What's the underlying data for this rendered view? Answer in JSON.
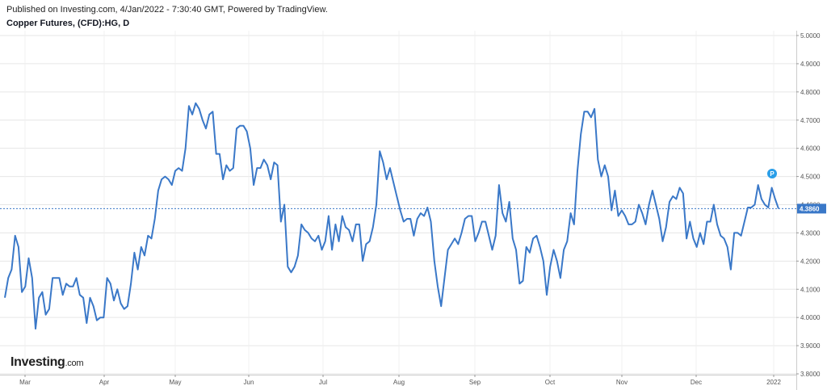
{
  "header": {
    "published": "Published on Investing.com, 4/Jan/2022 - 7:30:40 GMT, Powered by TradingView.",
    "title": "Copper Futures, (CFD):HG, D"
  },
  "logo": {
    "main": "Investing",
    "suffix": ".com"
  },
  "marker": {
    "label": "P",
    "color": "#2a9ee8"
  },
  "colors": {
    "line": "#3a78c8",
    "last_price_bg": "#3a78c8",
    "grid": "#e6e6e6"
  },
  "chart_data": {
    "type": "line",
    "title": "Copper Futures, (CFD):HG, D",
    "ylim": [
      3.8,
      5.0
    ],
    "y_ticks": [
      "3.8000",
      "3.9000",
      "4.0000",
      "4.1000",
      "4.2000",
      "4.3000",
      "4.4000",
      "4.5000",
      "4.6000",
      "4.7000",
      "4.8000",
      "4.9000",
      "5.0000"
    ],
    "x_tick_labels": [
      "Mar",
      "Apr",
      "May",
      "Jun",
      "Jul",
      "Aug",
      "Sep",
      "Oct",
      "Nov",
      "Dec",
      "2022"
    ],
    "last_price": "4.3860",
    "grid": true,
    "series": [
      {
        "values": [
          4.07,
          4.14,
          4.17,
          4.29,
          4.25,
          4.09,
          4.11,
          4.21,
          4.14,
          3.96,
          4.07,
          4.09,
          4.01,
          4.03,
          4.14,
          4.14,
          4.14,
          4.08,
          4.12,
          4.11,
          4.11,
          4.14,
          4.08,
          4.07,
          3.98,
          4.07,
          4.04,
          3.99,
          4.0,
          4.0,
          4.14,
          4.12,
          4.06,
          4.1,
          4.05,
          4.03,
          4.04,
          4.12,
          4.23,
          4.17,
          4.25,
          4.22,
          4.29,
          4.28,
          4.35,
          4.45,
          4.49,
          4.5,
          4.49,
          4.47,
          4.52,
          4.53,
          4.52,
          4.6,
          4.75,
          4.72,
          4.76,
          4.74,
          4.7,
          4.67,
          4.72,
          4.73,
          4.58,
          4.58,
          4.49,
          4.54,
          4.52,
          4.53,
          4.67,
          4.68,
          4.68,
          4.66,
          4.6,
          4.47,
          4.53,
          4.53,
          4.56,
          4.54,
          4.49,
          4.55,
          4.54,
          4.34,
          4.4,
          4.18,
          4.16,
          4.18,
          4.22,
          4.33,
          4.31,
          4.3,
          4.28,
          4.27,
          4.29,
          4.24,
          4.27,
          4.36,
          4.24,
          4.33,
          4.27,
          4.36,
          4.32,
          4.31,
          4.27,
          4.33,
          4.33,
          4.2,
          4.26,
          4.27,
          4.32,
          4.4,
          4.59,
          4.55,
          4.49,
          4.53,
          4.48,
          4.43,
          4.38,
          4.34,
          4.35,
          4.35,
          4.29,
          4.35,
          4.37,
          4.36,
          4.39,
          4.34,
          4.2,
          4.11,
          4.04,
          4.14,
          4.24,
          4.26,
          4.28,
          4.26,
          4.3,
          4.35,
          4.36,
          4.36,
          4.27,
          4.3,
          4.34,
          4.34,
          4.29,
          4.24,
          4.29,
          4.47,
          4.37,
          4.34,
          4.41,
          4.28,
          4.24,
          4.12,
          4.13,
          4.25,
          4.23,
          4.28,
          4.29,
          4.25,
          4.2,
          4.08,
          4.18,
          4.24,
          4.2,
          4.14,
          4.24,
          4.27,
          4.37,
          4.33,
          4.52,
          4.65,
          4.73,
          4.73,
          4.71,
          4.74,
          4.56,
          4.5,
          4.54,
          4.5,
          4.38,
          4.45,
          4.36,
          4.38,
          4.36,
          4.33,
          4.33,
          4.34,
          4.4,
          4.37,
          4.33,
          4.4,
          4.45,
          4.4,
          4.35,
          4.27,
          4.32,
          4.41,
          4.43,
          4.42,
          4.46,
          4.44,
          4.28,
          4.34,
          4.28,
          4.25,
          4.3,
          4.26,
          4.34,
          4.34,
          4.4,
          4.33,
          4.29,
          4.28,
          4.25,
          4.17,
          4.3,
          4.3,
          4.29,
          4.34,
          4.39,
          4.39,
          4.4,
          4.47,
          4.42,
          4.4,
          4.39,
          4.46,
          4.42,
          4.386
        ]
      }
    ]
  }
}
